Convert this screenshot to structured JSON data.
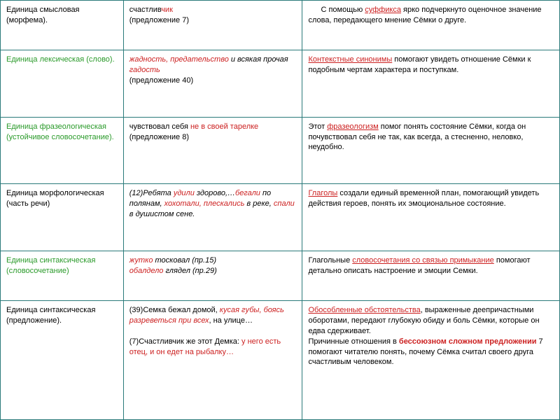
{
  "rows": [
    {
      "c1_a": "Единица смысловая",
      "c1_b": "(морфема).",
      "c2_a": "счастлив",
      "c2_b": "чик",
      "c2_c": "(предложение 7)",
      "c3_a": "С помощью ",
      "c3_b": "суффикса",
      "c3_c": " ярко подчеркнуто оценочное значение слова, передающего мнение Сёмки о друге."
    },
    {
      "c1_a": "Единица лексическая (слово).",
      "c2_a": "жадность, предательство",
      "c2_b": " и всякая прочая ",
      "c2_c": "гадость",
      "c2_d": "(предложение 40)",
      "c3_a": "Контекстные синонимы",
      "c3_b": " помогают увидеть отношение Сёмки к подобным чертам характера и поступкам."
    },
    {
      "c1_a": "Единица фразеологическая (устойчивое словосочетание).",
      "c2_a": "чувствовал себя ",
      "c2_b": "не в своей тарелке",
      "c2_c": "(предложение 8)",
      "c3_a": "Этот ",
      "c3_b": "фразеологизм",
      "c3_c": " помог понять состояние Сёмки, когда он почувствовал себя не так, как всегда, а стесненно, неловко, неудобно."
    },
    {
      "c1_a": "Единица морфологическая",
      "c1_b": "(часть речи)",
      "c2_a": "(12)Ребята ",
      "c2_b": "удили",
      "c2_c": " здорово,…",
      "c2_d": "бегали",
      "c2_e": " по полянам, ",
      "c2_f": "хохотали, плескались",
      "c2_g": " в реке, ",
      "c2_h": "спали",
      "c2_i": " в душистом сене.",
      "c3_a": "Глаголы",
      "c3_b": " создали единый временной план, помогающий увидеть действия героев, понять их эмоциональное состояние."
    },
    {
      "c1_a": "Единица синтаксическая (словосочетание)",
      "c2_a": "жутко",
      "c2_b": " тосковал (пр.15)",
      "c2_c": "обалдело",
      "c2_d": " глядел (пр.29)",
      "c3_a": "Глагольные ",
      "c3_b": "словосочетания со связью примыкание",
      "c3_c": " помогают детально описать настроение и эмоции Семки."
    },
    {
      "c1_a": "Единица синтаксическая (предложение).",
      "c2_a": "(39)Семка бежал домой, ",
      "c2_b": "кусая губы, боясь разреветься при всех",
      "c2_c": ", на улице…",
      "c2_d": "(7)Счастливчик же этот Демка: ",
      "c2_e": "у него есть отец, и он едет на рыбалку…",
      "c3_a": "Обособленные обстоятельства",
      "c3_b": ", выраженные деепричастными оборотами, передают глубокую обиду и боль Сёмки, которые он едва сдерживает.",
      "c3_c": "Причинные отношения в ",
      "c3_d": "бессоюзном сложном предложении",
      "c3_e": " 7 помогают читателю понять, почему Сёмка считал своего друга счастливым человеком."
    }
  ]
}
